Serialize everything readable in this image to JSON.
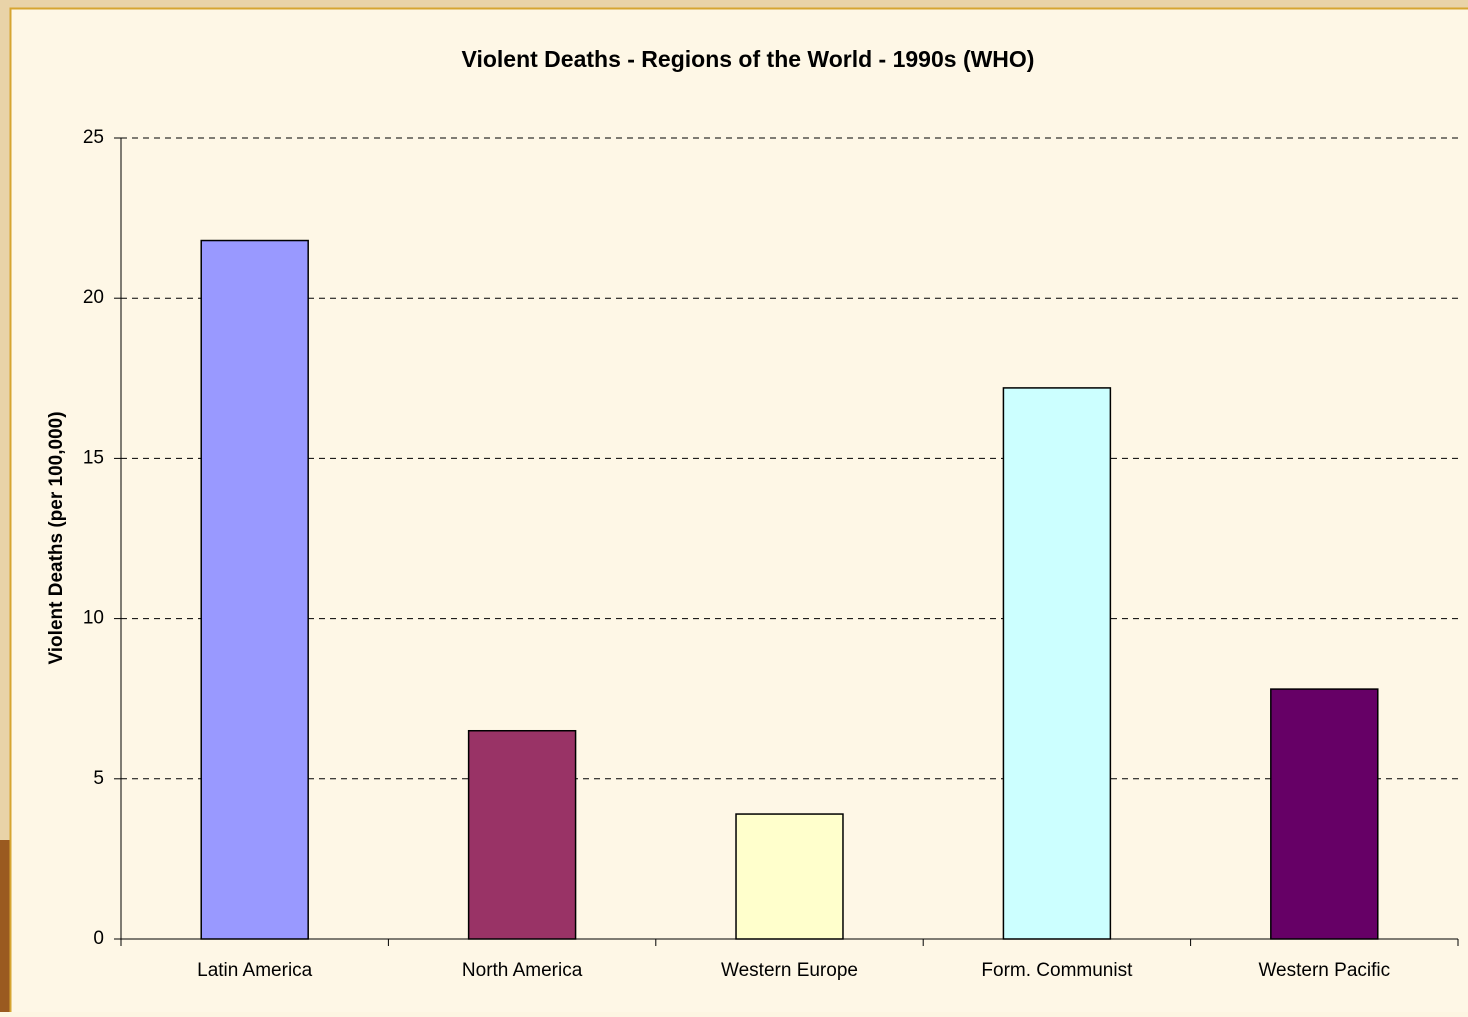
{
  "chart_data": {
    "type": "bar",
    "title": "Violent Deaths - Regions of the World - 1990s (WHO)",
    "y_label": "Violent Deaths (per 100,000)",
    "categories": [
      "Latin America",
      "North America",
      "Western Europe",
      "Form. Communist",
      "Western Pacific"
    ],
    "values": [
      21.8,
      6.5,
      3.9,
      17.2,
      7.8
    ],
    "colors": [
      "#9999ff",
      "#993366",
      "#ffffcc",
      "#ccffff",
      "#660066"
    ],
    "ylim": [
      0,
      25
    ],
    "yticks": [
      0,
      5,
      10,
      15,
      20,
      25
    ],
    "grid": true
  }
}
